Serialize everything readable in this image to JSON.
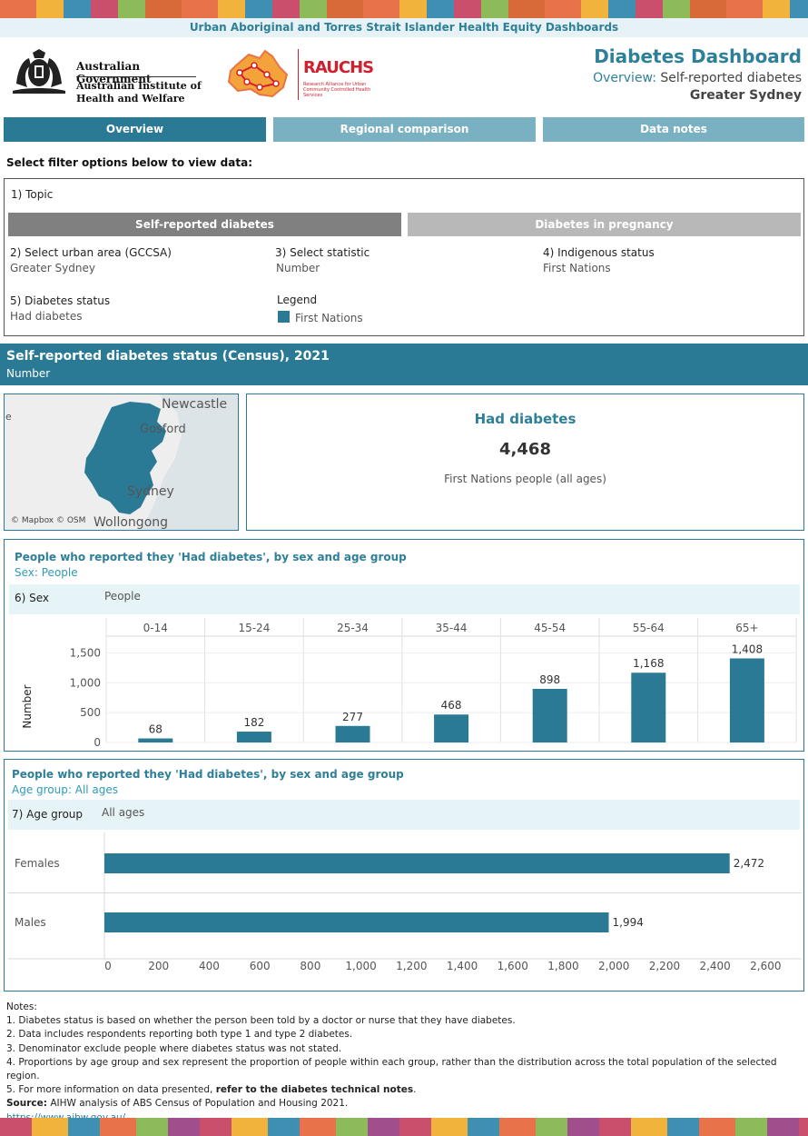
{
  "banner": "Urban Aboriginal and Torres Strait Islander Health Equity Dashboards",
  "logos": {
    "gov_line1": "Australian Government",
    "gov_line2": "Australian Institute of Health and Welfare",
    "rauchs_name": "RAUCHS",
    "rauchs_sub": "Research Alliance for Urban Community Controlled Health Services"
  },
  "header": {
    "title": "Diabetes Dashboard",
    "subtitle_prefix": "Overview:",
    "subtitle_topic": "Self-reported diabetes",
    "region": "Greater Sydney"
  },
  "tabs": [
    {
      "label": "Overview",
      "active": true
    },
    {
      "label": "Regional comparison",
      "active": false
    },
    {
      "label": "Data notes",
      "active": false
    }
  ],
  "filters": {
    "heading": "Select filter options below to view data:",
    "topic_label": "1) Topic",
    "topic_options": [
      "Self-reported diabetes",
      "Diabetes in pregnancy"
    ],
    "area_label": "2) Select urban area (GCCSA)",
    "area_value": "Greater Sydney",
    "statistic_label": "3) Select statistic",
    "statistic_value": "Number",
    "indigenous_label": "4) Indigenous status",
    "indigenous_value": "First Nations",
    "status_label": "5) Diabetes status",
    "status_value": "Had diabetes",
    "legend_label": "Legend",
    "legend_item": "First Nations"
  },
  "section": {
    "title": "Self-reported diabetes status (Census), 2021",
    "subtitle": "Number"
  },
  "map": {
    "labels": [
      "Newcastle",
      "Gosford",
      "Sydney",
      "Wollongong"
    ],
    "edge_label": "e",
    "credit": "© Mapbox © OSM"
  },
  "kpi": {
    "title": "Had diabetes",
    "value": "4,468",
    "subtitle": "First Nations people (all ages)"
  },
  "age_panel": {
    "title": "People who reported they 'Had diabetes', by sex and age group",
    "subtitle": "Sex: People",
    "param_label": "6) Sex",
    "param_value": "People"
  },
  "sex_panel": {
    "title": "People who reported they 'Had diabetes', by sex and age group",
    "subtitle": "Age group: All ages",
    "param_label": "7) Age group",
    "param_value": "All ages"
  },
  "chart_data": [
    {
      "type": "bar",
      "categories": [
        "0-14",
        "15-24",
        "25-34",
        "35-44",
        "45-54",
        "55-64",
        "65+"
      ],
      "values": [
        68,
        182,
        277,
        468,
        898,
        1168,
        1408
      ],
      "value_labels": [
        "68",
        "182",
        "277",
        "468",
        "898",
        "1,168",
        "1,408"
      ],
      "ylabel": "Number",
      "yticks": [
        0,
        500,
        1000,
        1500
      ],
      "ytick_labels": [
        "0",
        "500",
        "1,000",
        "1,500"
      ],
      "ylim": [
        0,
        1750
      ],
      "color": "#2b7a95"
    },
    {
      "type": "bar",
      "orientation": "horizontal",
      "categories": [
        "Females",
        "Males"
      ],
      "values": [
        2472,
        1994
      ],
      "value_labels": [
        "2,472",
        "1,994"
      ],
      "xticks": [
        0,
        200,
        400,
        600,
        800,
        1000,
        1200,
        1400,
        1600,
        1800,
        2000,
        2200,
        2400,
        2600
      ],
      "xtick_labels": [
        "0",
        "200",
        "400",
        "600",
        "800",
        "1,000",
        "1,200",
        "1,400",
        "1,600",
        "1,800",
        "2,000",
        "2,200",
        "2,400",
        "2,600"
      ],
      "xlim": [
        0,
        2700
      ],
      "color": "#2b7a95"
    }
  ],
  "notes": {
    "heading": "Notes:",
    "items": [
      "1. Diabetes status is based on whether the person been told by a doctor or nurse that they have diabetes.",
      "2. Data includes respondents reporting both type 1 and type 2 diabetes.",
      "3. Denominator exclude people where diabetes status was not stated.",
      "4. Proportions by age group and sex represent the proportion of people within each group, rather than the distribution across the total population of the selected region."
    ],
    "note5_prefix": "5. For more information on data presented,",
    "note5_link": "refer to the diabetes technical notes",
    "note5_suffix": ".",
    "source_label": "Source:",
    "source_text": "AIHW analysis of ABS Census of Population and Housing 2021.",
    "url": "https://www.aihw.gov.au/"
  }
}
